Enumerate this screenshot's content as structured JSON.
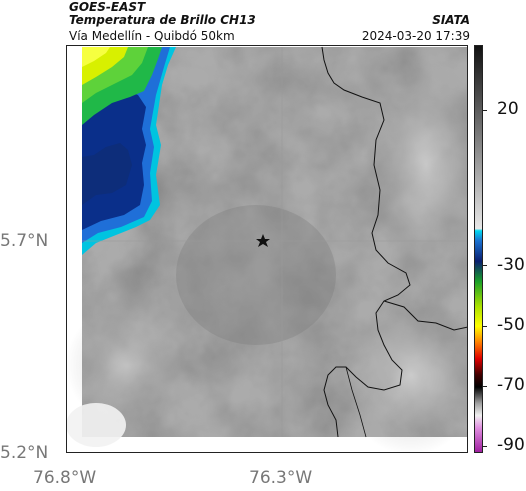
{
  "header": {
    "title_line1": "GOES-EAST",
    "title_line2": "Temperatura de Brillo CH13",
    "title_line3": "Vía Medellín - Quibdó 50km",
    "organization": "SIATA",
    "datetime": "2024-03-20 17:39"
  },
  "axes": {
    "lat_labels": [
      "5.7°N",
      "5.2°N"
    ],
    "lon_labels": [
      "76.8°W",
      "76.3°W"
    ]
  },
  "colorbar": {
    "labels": [
      "20",
      "-30",
      "-50",
      "-70",
      "-90"
    ]
  },
  "map": {
    "marker": "star-icon",
    "gridline_color": "#999999"
  }
}
